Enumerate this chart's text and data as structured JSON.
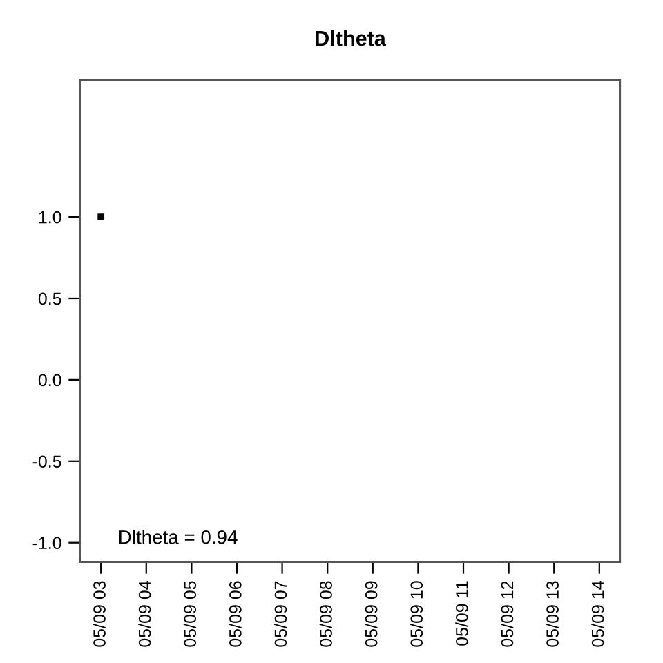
{
  "chart_data": {
    "type": "line",
    "title": "Dltheta",
    "categories": [
      "05/09 03",
      "05/09 04",
      "05/09 05",
      "05/09 06",
      "05/09 07",
      "05/09 08",
      "05/09 09",
      "05/09 10",
      "05/09 11",
      "05/09 12",
      "05/09 13",
      "05/09 14"
    ],
    "series": [
      {
        "color": "#000000",
        "values": [
          1.0,
          null,
          null,
          null,
          null,
          null,
          null,
          null,
          null,
          null,
          null,
          null
        ]
      }
    ],
    "ylim": [
      -1.12,
      1.84
    ],
    "yticks": [
      {
        "value": -1,
        "label": "-1.0"
      },
      {
        "value": -0.5,
        "label": "-0.5"
      },
      {
        "value": 0,
        "label": "0.0"
      },
      {
        "value": 0.5,
        "label": "0.5"
      },
      {
        "value": 1,
        "label": "1.0"
      }
    ],
    "annotations": [
      "Dltheta = 0.94"
    ],
    "grid": false,
    "legend": false,
    "marker": "square"
  }
}
